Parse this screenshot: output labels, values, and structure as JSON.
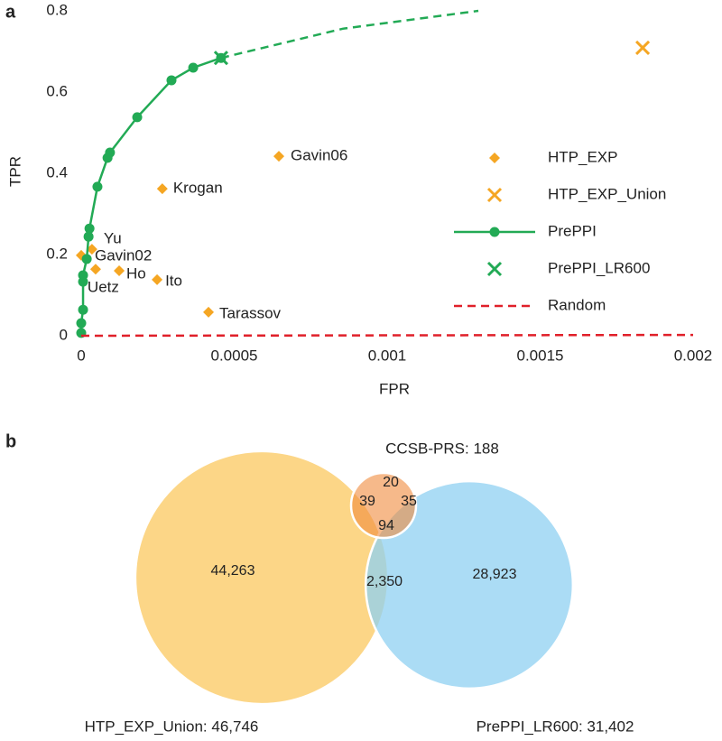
{
  "chart_data": [
    {
      "type": "scatter",
      "panel_label": "a",
      "x_label": "FPR",
      "y_label": "TPR",
      "xlim": [
        0,
        0.002
      ],
      "ylim": [
        0,
        0.8
      ],
      "xticks": [
        0,
        0.0005,
        0.001,
        0.0015,
        0.002
      ],
      "yticks": [
        0,
        0.2,
        0.4,
        0.6,
        0.8
      ],
      "legend": "right",
      "series": [
        {
          "name": "HTP_EXP",
          "color": "#f5a623",
          "marker": "diamond",
          "x": [
            0.000646,
            0.000265,
            3.5e-05,
            0,
            0.000124,
            0.000248,
            4.7e-05,
            0.000416
          ],
          "values": [
            0.442,
            0.362,
            0.213,
            0.198,
            0.16,
            0.138,
            0.164,
            0.058
          ],
          "point_labels": [
            "Gavin06",
            "Krogan",
            "Yu",
            "Gavin02",
            "Ho",
            "Ito",
            "Uetz",
            "Tarassov"
          ]
        },
        {
          "name": "HTP_EXP_Union",
          "color": "#f5a623",
          "marker": "x",
          "x": [
            0.001835
          ],
          "values": [
            0.709
          ]
        },
        {
          "name": "PrePPI",
          "color": "#22aa55",
          "marker": "circle-line",
          "x": [
            0,
            0,
            6e-06,
            6e-06,
            6e-06,
            1.8e-05,
            2.4e-05,
            2.7e-05,
            5.3e-05,
            8.6e-05,
            9.4e-05,
            0.000183,
            0.000295,
            0.000366,
            0.000457
          ],
          "values": [
            0.007,
            0.031,
            0.064,
            0.133,
            0.149,
            0.189,
            0.244,
            0.264,
            0.367,
            0.438,
            0.451,
            0.538,
            0.629,
            0.66,
            0.684
          ]
        },
        {
          "color": "#22aa55",
          "marker": "dashed-line",
          "x": [
            0.000457,
            0.000855,
            0.001298
          ],
          "values": [
            0.684,
            0.756,
            0.8
          ]
        },
        {
          "name": "PrePPI_LR600",
          "color": "#22aa55",
          "marker": "x",
          "x": [
            0.000457
          ],
          "values": [
            0.684
          ]
        },
        {
          "name": "Random",
          "color": "#e0202a",
          "marker": "dashed-line",
          "x": [
            0,
            0.002
          ],
          "values": [
            0,
            0.002
          ]
        }
      ]
    },
    {
      "type": "venn",
      "panel_label": "b",
      "sets": [
        {
          "label": "HTP_EXP_Union: 46,746",
          "size": 46746,
          "color": "#fcd27a"
        },
        {
          "label": "PrePPI_LR600: 31,402",
          "size": 31402,
          "color": "#8fd0f2"
        },
        {
          "label": "CCSB-PRS: 188",
          "size": 188,
          "color": "#f08a3c"
        }
      ],
      "values": [
        44263,
        28923,
        2350,
        39,
        20,
        35,
        94
      ],
      "value_labels": [
        "44,263",
        "28,923",
        "2,350",
        "39",
        "20",
        "35",
        "94"
      ]
    }
  ]
}
